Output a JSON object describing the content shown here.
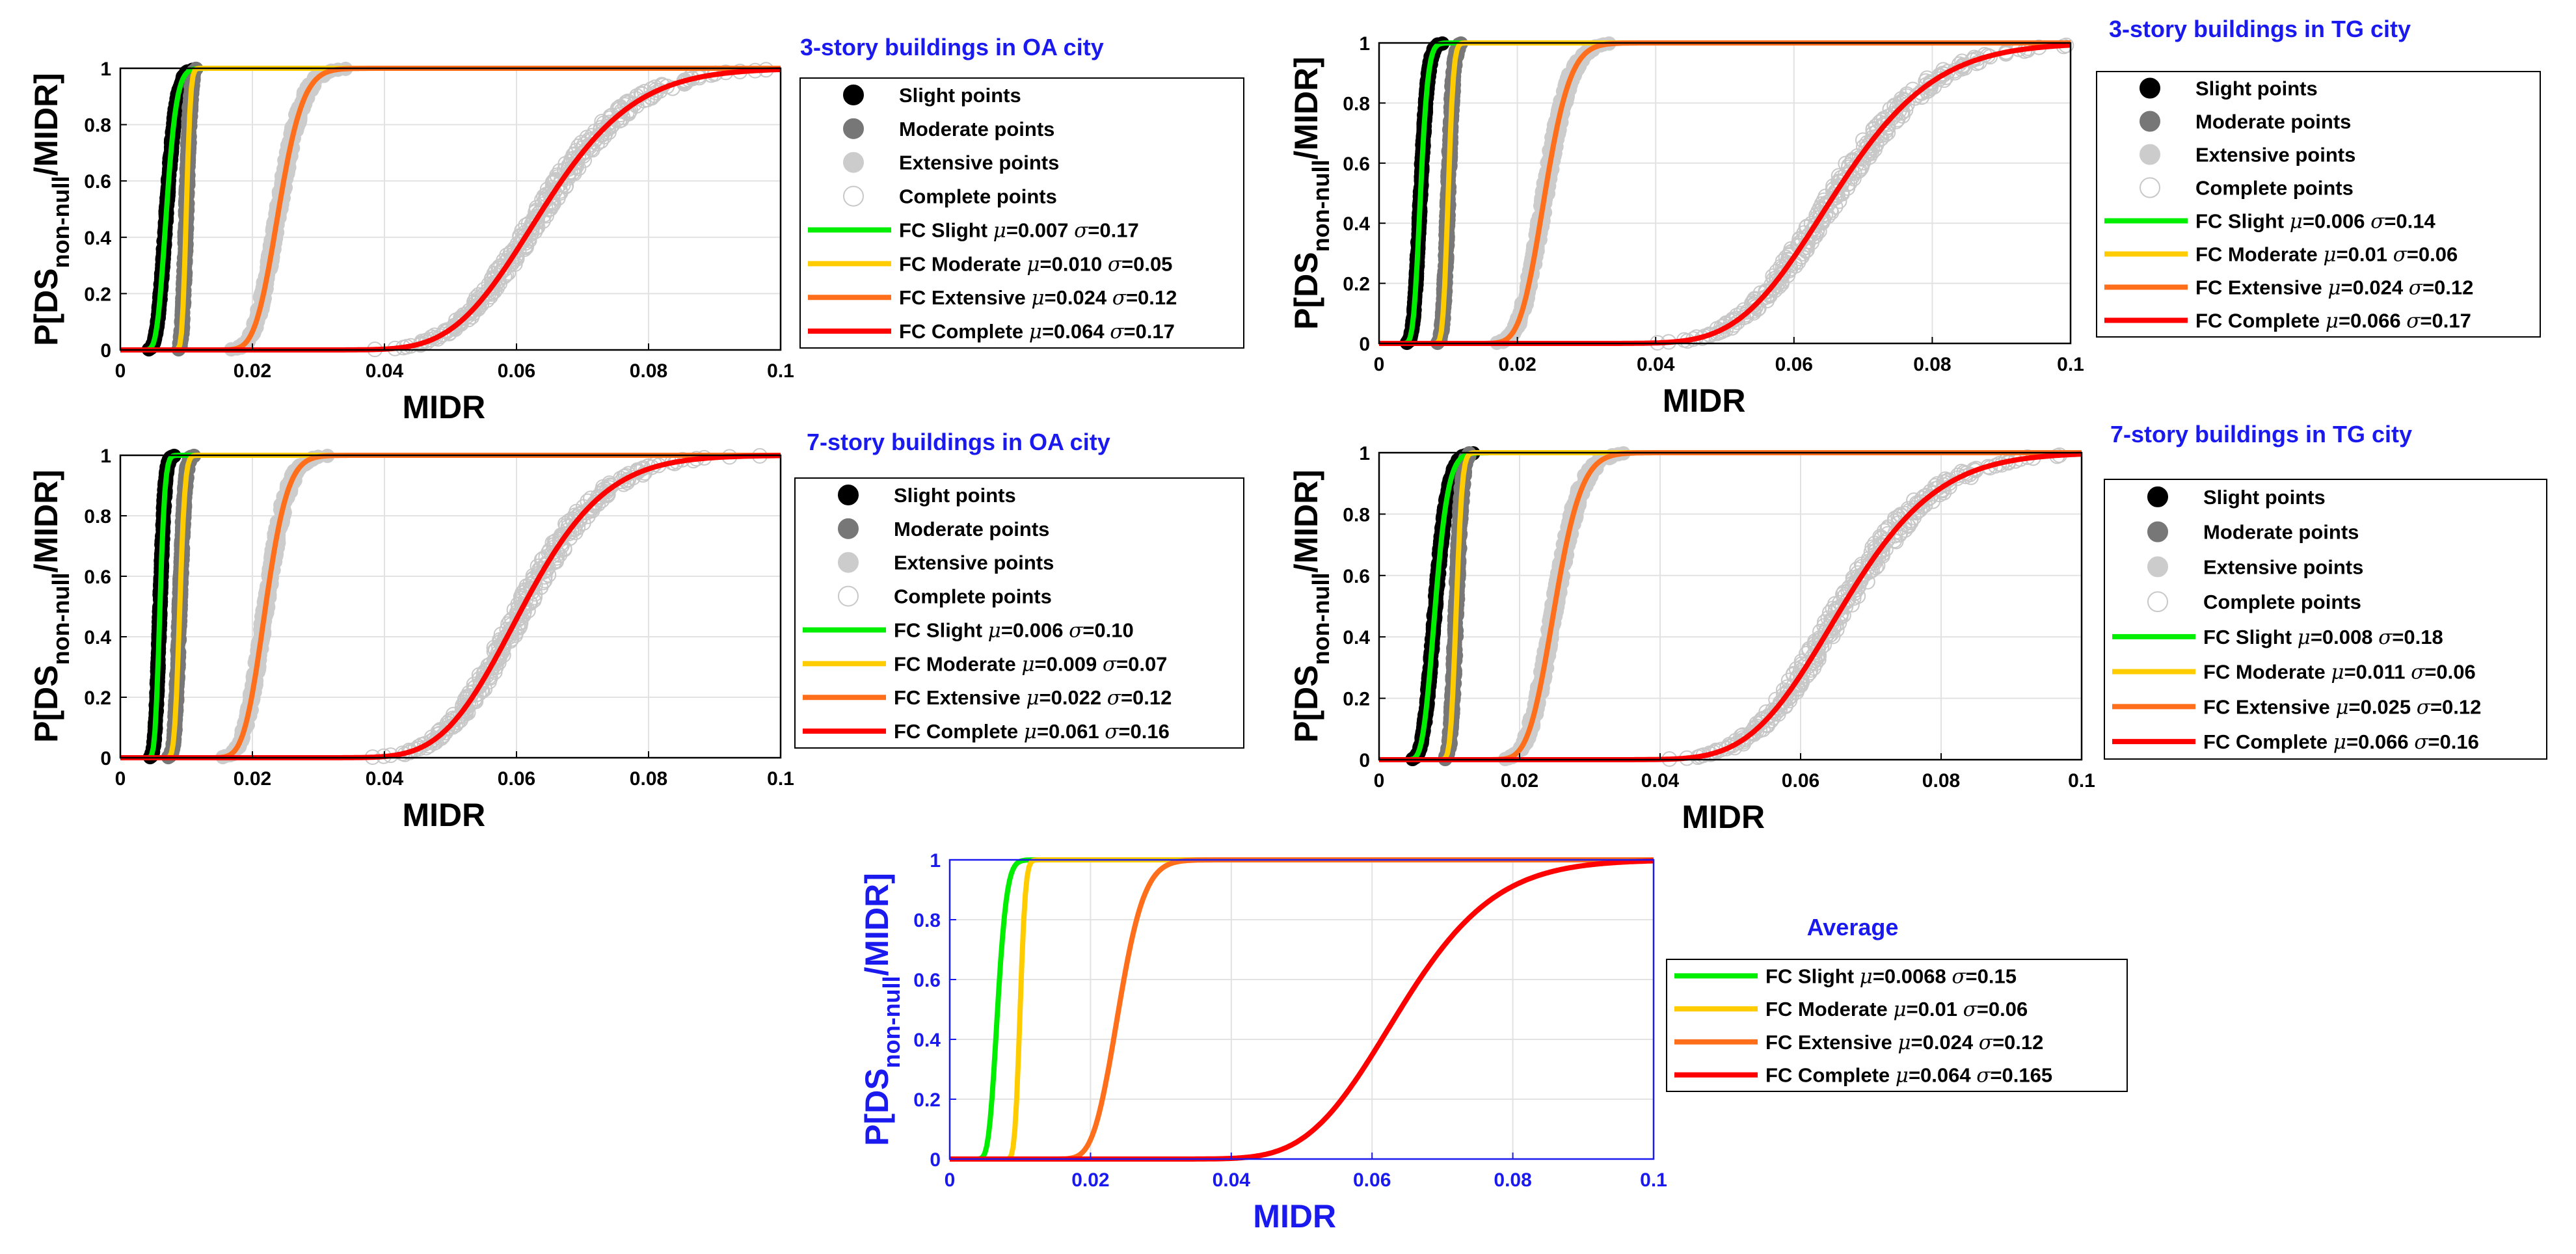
{
  "colors": {
    "slight": "#00ee00",
    "moderate": "#ffcc00",
    "extensive": "#ff6e1a",
    "complete": "#ff0000",
    "slight_pts": "#000000",
    "moderate_pts": "#777777",
    "extensive_pts": "#cccccc",
    "complete_pts_stroke": "#c8c8c8",
    "title": "#1a1aee",
    "axes": "#000000",
    "grid": "#e2e2e2"
  },
  "chart_data": [
    {
      "type": "line",
      "title": "3-story buildings in OA city",
      "xlabel": "MIDR",
      "ylabel_main": "P[DS",
      "ylabel_sub": "non-null",
      "ylabel_end": "/MIDR]",
      "xlim": [
        0,
        0.1
      ],
      "ylim": [
        0,
        1
      ],
      "x_ticks": [
        "0",
        "0.02",
        "0.04",
        "0.06",
        "0.08",
        "0.1"
      ],
      "y_ticks": [
        "0",
        "0.2",
        "0.4",
        "0.6",
        "0.8",
        "1"
      ],
      "grid": true,
      "legend_placement": "right",
      "points": [
        {
          "name": "Slight points",
          "color_key": "slight_pts",
          "filled": true
        },
        {
          "name": "Moderate points",
          "color_key": "moderate_pts",
          "filled": true
        },
        {
          "name": "Extensive points",
          "color_key": "extensive_pts",
          "filled": true
        },
        {
          "name": "Complete points",
          "color_key": "complete_pts_stroke",
          "filled": false
        }
      ],
      "series": [
        {
          "state": "Slight",
          "label": "FC Slight",
          "mu": 0.007,
          "sigma": 0.17,
          "mu_text": "=0.007",
          "sigma_text": "=0.17",
          "color_key": "slight"
        },
        {
          "state": "Moderate",
          "label": "FC Moderate",
          "mu": 0.01,
          "sigma": 0.05,
          "mu_text": "=0.010",
          "sigma_text": "=0.05",
          "color_key": "moderate"
        },
        {
          "state": "Extensive",
          "label": "FC Extensive",
          "mu": 0.024,
          "sigma": 0.12,
          "mu_text": "=0.024",
          "sigma_text": "=0.12",
          "color_key": "extensive"
        },
        {
          "state": "Complete",
          "label": "FC Complete",
          "mu": 0.064,
          "sigma": 0.17,
          "mu_text": "=0.064",
          "sigma_text": "=0.17",
          "color_key": "complete"
        }
      ]
    },
    {
      "type": "line",
      "title": "3-story buildings in TG city",
      "xlabel": "MIDR",
      "ylabel_main": "P[DS",
      "ylabel_sub": "non-null",
      "ylabel_end": "/MIDR]",
      "xlim": [
        0,
        0.1
      ],
      "ylim": [
        0,
        1
      ],
      "x_ticks": [
        "0",
        "0.02",
        "0.04",
        "0.06",
        "0.08",
        "0.1"
      ],
      "y_ticks": [
        "0",
        "0.2",
        "0.4",
        "0.6",
        "0.8",
        "1"
      ],
      "grid": true,
      "legend_placement": "right",
      "points": [
        {
          "name": "Slight points",
          "color_key": "slight_pts",
          "filled": true
        },
        {
          "name": "Moderate points",
          "color_key": "moderate_pts",
          "filled": true
        },
        {
          "name": "Extensive points",
          "color_key": "extensive_pts",
          "filled": true
        },
        {
          "name": "Complete points",
          "color_key": "complete_pts_stroke",
          "filled": false
        }
      ],
      "series": [
        {
          "state": "Slight",
          "label": "FC Slight",
          "mu": 0.006,
          "sigma": 0.14,
          "mu_text": "=0.006",
          "sigma_text": "=0.14",
          "color_key": "slight"
        },
        {
          "state": "Moderate",
          "label": "FC Moderate",
          "mu": 0.01,
          "sigma": 0.06,
          "mu_text": "=0.01",
          "sigma_text": "=0.06",
          "color_key": "moderate"
        },
        {
          "state": "Extensive",
          "label": "FC Extensive",
          "mu": 0.024,
          "sigma": 0.12,
          "mu_text": "=0.024",
          "sigma_text": "=0.12",
          "color_key": "extensive"
        },
        {
          "state": "Complete",
          "label": "FC Complete",
          "mu": 0.066,
          "sigma": 0.17,
          "mu_text": "=0.066",
          "sigma_text": "=0.17",
          "color_key": "complete"
        }
      ]
    },
    {
      "type": "line",
      "title": "7-story buildings in OA city",
      "xlabel": "MIDR",
      "ylabel_main": "P[DS",
      "ylabel_sub": "non-null",
      "ylabel_end": "/MIDR]",
      "xlim": [
        0,
        0.1
      ],
      "ylim": [
        0,
        1
      ],
      "x_ticks": [
        "0",
        "0.02",
        "0.04",
        "0.06",
        "0.08",
        "0.1"
      ],
      "y_ticks": [
        "0",
        "0.2",
        "0.4",
        "0.6",
        "0.8",
        "1"
      ],
      "grid": true,
      "legend_placement": "right",
      "points": [
        {
          "name": "Slight points",
          "color_key": "slight_pts",
          "filled": true
        },
        {
          "name": "Moderate points",
          "color_key": "moderate_pts",
          "filled": true
        },
        {
          "name": "Extensive points",
          "color_key": "extensive_pts",
          "filled": true
        },
        {
          "name": "Complete points",
          "color_key": "complete_pts_stroke",
          "filled": false
        }
      ],
      "series": [
        {
          "state": "Slight",
          "label": "FC Slight",
          "mu": 0.006,
          "sigma": 0.1,
          "mu_text": "=0.006",
          "sigma_text": "=0.10",
          "color_key": "slight"
        },
        {
          "state": "Moderate",
          "label": "FC Moderate",
          "mu": 0.009,
          "sigma": 0.07,
          "mu_text": "=0.009",
          "sigma_text": "=0.07",
          "color_key": "moderate"
        },
        {
          "state": "Extensive",
          "label": "FC Extensive",
          "mu": 0.022,
          "sigma": 0.12,
          "mu_text": "=0.022",
          "sigma_text": "=0.12",
          "color_key": "extensive"
        },
        {
          "state": "Complete",
          "label": "FC Complete",
          "mu": 0.061,
          "sigma": 0.16,
          "mu_text": "=0.061",
          "sigma_text": "=0.16",
          "color_key": "complete"
        }
      ]
    },
    {
      "type": "line",
      "title": "7-story buildings in TG city",
      "xlabel": "MIDR",
      "ylabel_main": "P[DS",
      "ylabel_sub": "non-null",
      "ylabel_end": "/MIDR]",
      "xlim": [
        0,
        0.1
      ],
      "ylim": [
        0,
        1
      ],
      "x_ticks": [
        "0",
        "0.02",
        "0.04",
        "0.06",
        "0.08",
        "0.1"
      ],
      "y_ticks": [
        "0",
        "0.2",
        "0.4",
        "0.6",
        "0.8",
        "1"
      ],
      "grid": true,
      "legend_placement": "right",
      "points": [
        {
          "name": "Slight points",
          "color_key": "slight_pts",
          "filled": true
        },
        {
          "name": "Moderate points",
          "color_key": "moderate_pts",
          "filled": true
        },
        {
          "name": "Extensive points",
          "color_key": "extensive_pts",
          "filled": true
        },
        {
          "name": "Complete points",
          "color_key": "complete_pts_stroke",
          "filled": false
        }
      ],
      "series": [
        {
          "state": "Slight",
          "label": "FC Slight",
          "mu": 0.008,
          "sigma": 0.18,
          "mu_text": "=0.008",
          "sigma_text": "=0.18",
          "color_key": "slight"
        },
        {
          "state": "Moderate",
          "label": "FC Moderate",
          "mu": 0.011,
          "sigma": 0.06,
          "mu_text": "=0.011",
          "sigma_text": "=0.06",
          "color_key": "moderate"
        },
        {
          "state": "Extensive",
          "label": "FC Extensive",
          "mu": 0.025,
          "sigma": 0.12,
          "mu_text": "=0.025",
          "sigma_text": "=0.12",
          "color_key": "extensive"
        },
        {
          "state": "Complete",
          "label": "FC Complete",
          "mu": 0.066,
          "sigma": 0.16,
          "mu_text": "=0.066",
          "sigma_text": "=0.16",
          "color_key": "complete"
        }
      ]
    },
    {
      "type": "line",
      "title": "Average",
      "xlabel": "MIDR",
      "ylabel_main": "P[DS",
      "ylabel_sub": "non-null",
      "ylabel_end": "/MIDR]",
      "xlim": [
        0,
        0.1
      ],
      "ylim": [
        0,
        1
      ],
      "x_ticks": [
        "0",
        "0.02",
        "0.04",
        "0.06",
        "0.08",
        "0.1"
      ],
      "y_ticks": [
        "0",
        "0.2",
        "0.4",
        "0.6",
        "0.8",
        "1"
      ],
      "grid": true,
      "legend_placement": "right",
      "axis_color": "blue",
      "points": [],
      "series": [
        {
          "state": "Slight",
          "label": "FC Slight",
          "mu": 0.0068,
          "sigma": 0.15,
          "mu_text": "=0.0068",
          "sigma_text": "=0.15",
          "color_key": "slight"
        },
        {
          "state": "Moderate",
          "label": "FC Moderate",
          "mu": 0.01,
          "sigma": 0.06,
          "mu_text": "=0.01",
          "sigma_text": "=0.06",
          "color_key": "moderate"
        },
        {
          "state": "Extensive",
          "label": "FC Extensive",
          "mu": 0.024,
          "sigma": 0.12,
          "mu_text": "=0.024",
          "sigma_text": "=0.12",
          "color_key": "extensive"
        },
        {
          "state": "Complete",
          "label": "FC Complete",
          "mu": 0.064,
          "sigma": 0.165,
          "mu_text": "=0.064",
          "sigma_text": "=0.165",
          "color_key": "complete"
        }
      ]
    }
  ]
}
